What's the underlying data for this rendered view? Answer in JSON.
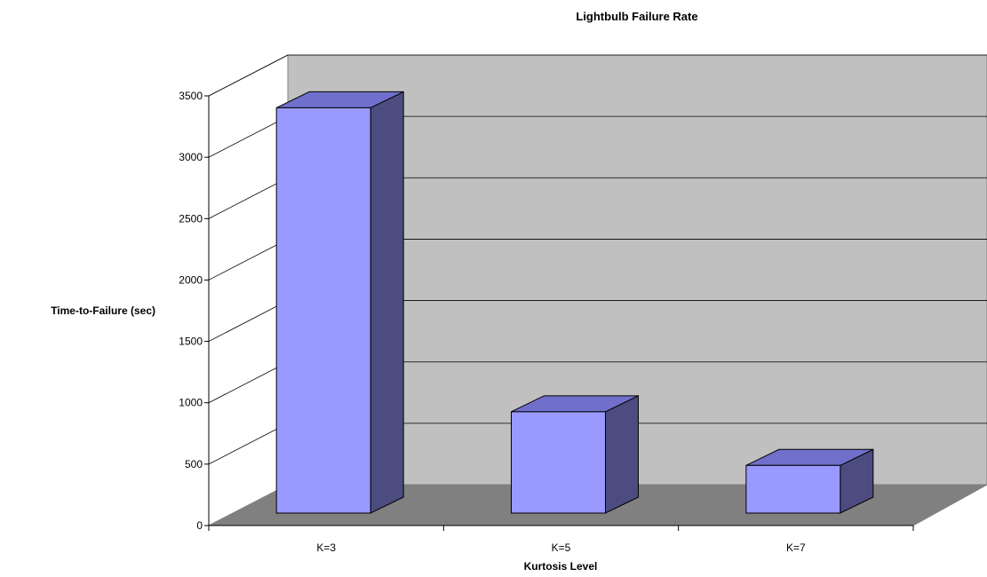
{
  "chart_data": {
    "type": "bar",
    "title": "Lightbulb Failure Rate",
    "xlabel": "Kurtosis Level",
    "ylabel": "Time-to-Failure (sec)",
    "categories": [
      "K=3",
      "K=5",
      "K=7"
    ],
    "values": [
      3400,
      850,
      400
    ],
    "ylim": [
      0,
      3500
    ],
    "yticks": [
      0,
      500,
      1000,
      1500,
      2000,
      2500,
      3000,
      3500
    ],
    "grid": true,
    "legend": "none",
    "style": "3d",
    "colors": {
      "bar_front": "#9999ff",
      "bar_top": "#7070cc",
      "bar_side": "#4c4c80",
      "wall": "#c0c0c0",
      "floor": "#808080",
      "grid": "#000000"
    }
  }
}
